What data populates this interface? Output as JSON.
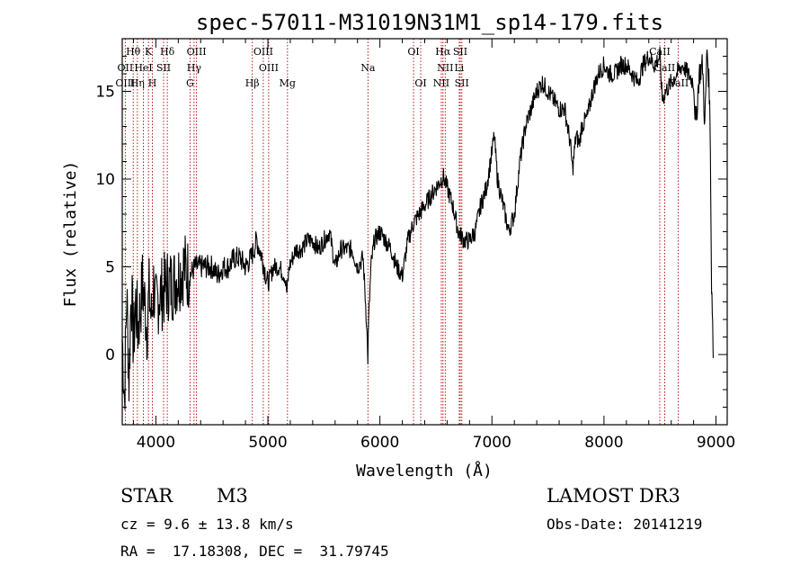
{
  "chart_data": {
    "type": "line",
    "title": "spec-57011-M31019N31M1_sp14-179.fits",
    "xlabel": "Wavelength (Å)",
    "ylabel": "Flux (relative)",
    "xlim": [
      3700,
      9100
    ],
    "ylim": [
      -4,
      18
    ],
    "xticks": [
      4000,
      5000,
      6000,
      7000,
      8000,
      9000
    ],
    "yticks": [
      0,
      5,
      10,
      15
    ],
    "series": [
      {
        "name": "flux",
        "x": [
          3700,
          3720,
          3740,
          3760,
          3780,
          3800,
          3820,
          3840,
          3860,
          3880,
          3900,
          3920,
          3940,
          3960,
          3980,
          4000,
          4030,
          4060,
          4100,
          4150,
          4200,
          4250,
          4300,
          4350,
          4400,
          4450,
          4500,
          4550,
          4600,
          4650,
          4700,
          4750,
          4800,
          4850,
          4900,
          4950,
          5000,
          5050,
          5100,
          5150,
          5170,
          5190,
          5250,
          5300,
          5350,
          5400,
          5450,
          5500,
          5550,
          5600,
          5650,
          5700,
          5750,
          5800,
          5850,
          5880,
          5892,
          5900,
          5920,
          5950,
          6000,
          6050,
          6100,
          6150,
          6200,
          6250,
          6300,
          6350,
          6400,
          6450,
          6500,
          6550,
          6563,
          6600,
          6650,
          6700,
          6750,
          6800,
          6850,
          6900,
          6950,
          7000,
          7020,
          7050,
          7100,
          7150,
          7200,
          7250,
          7300,
          7350,
          7400,
          7450,
          7500,
          7550,
          7600,
          7650,
          7700,
          7720,
          7750,
          7780,
          7800,
          7850,
          7900,
          7950,
          8000,
          8050,
          8100,
          8150,
          8200,
          8250,
          8300,
          8350,
          8400,
          8450,
          8500,
          8520,
          8550,
          8600,
          8650,
          8700,
          8750,
          8800,
          8820,
          8850,
          8880,
          8900,
          8920,
          8940,
          8950,
          8960,
          8970,
          8975
        ],
        "values": [
          1.0,
          -2.5,
          3.5,
          -1.5,
          4.0,
          0.5,
          3.0,
          1.5,
          2.5,
          4.0,
          3.0,
          1.5,
          3.5,
          2.0,
          4.0,
          2.5,
          3.5,
          3.5,
          4.0,
          4.0,
          4.5,
          5.0,
          4.5,
          5.0,
          5.0,
          5.0,
          5.0,
          4.5,
          5.0,
          5.0,
          5.5,
          5.5,
          5.0,
          5.5,
          6.5,
          5.5,
          4.0,
          5.0,
          5.0,
          4.5,
          3.5,
          5.0,
          6.0,
          6.0,
          6.5,
          6.5,
          6.0,
          6.5,
          7.0,
          5.0,
          6.0,
          6.0,
          6.0,
          5.0,
          5.5,
          2.0,
          -0.2,
          2.0,
          5.0,
          6.5,
          7.0,
          6.5,
          6.0,
          5.0,
          4.5,
          6.5,
          7.5,
          8.0,
          8.5,
          9.0,
          9.5,
          10.0,
          10.2,
          9.5,
          8.5,
          7.0,
          6.5,
          6.5,
          7.0,
          8.5,
          9.5,
          11.5,
          12.5,
          10.0,
          8.5,
          7.0,
          8.0,
          11.0,
          13.0,
          14.0,
          15.0,
          15.5,
          15.0,
          14.5,
          14.0,
          14.0,
          12.0,
          10.5,
          12.5,
          12.0,
          13.0,
          13.5,
          15.0,
          16.0,
          16.5,
          16.0,
          16.0,
          16.5,
          16.5,
          16.0,
          15.5,
          16.5,
          17.0,
          16.5,
          17.0,
          14.5,
          15.0,
          15.5,
          16.0,
          16.5,
          16.0,
          15.5,
          13.0,
          16.0,
          16.5,
          13.0,
          17.5,
          15.0,
          12.0,
          4.0,
          2.0,
          -0.2
        ]
      }
    ],
    "line_markers": [
      {
        "name": "Hθ",
        "w": 3798,
        "row": 0
      },
      {
        "name": "K",
        "w": 3934,
        "row": 0
      },
      {
        "name": "Hδ",
        "w": 4102,
        "row": 0
      },
      {
        "name": "OIII",
        "w": 4363,
        "row": 0
      },
      {
        "name": "OIII",
        "w": 4959,
        "row": 0
      },
      {
        "name": "OI",
        "w": 6300,
        "row": 0
      },
      {
        "name": "Hα",
        "w": 6563,
        "row": 0
      },
      {
        "name": "SII",
        "w": 6717,
        "row": 0
      },
      {
        "name": "CaII",
        "w": 8498,
        "row": 0
      },
      {
        "name": "OII",
        "w": 3727,
        "row": 1
      },
      {
        "name": "HeI",
        "w": 3889,
        "row": 1
      },
      {
        "name": "SII",
        "w": 4069,
        "row": 1
      },
      {
        "name": "Hγ",
        "w": 4341,
        "row": 1
      },
      {
        "name": "OIII",
        "w": 5007,
        "row": 1
      },
      {
        "name": "Na",
        "w": 5893,
        "row": 1
      },
      {
        "name": "NII",
        "w": 6583,
        "row": 1
      },
      {
        "name": "Li",
        "w": 6708,
        "row": 1
      },
      {
        "name": "CaII",
        "w": 8542,
        "row": 1
      },
      {
        "name": "OIII",
        "w": 3727,
        "row": 2
      },
      {
        "name": "Hη",
        "w": 3835,
        "row": 2
      },
      {
        "name": "H",
        "w": 3969,
        "row": 2
      },
      {
        "name": "G",
        "w": 4305,
        "row": 2
      },
      {
        "name": "Hβ",
        "w": 4861,
        "row": 2
      },
      {
        "name": "Mg",
        "w": 5175,
        "row": 2
      },
      {
        "name": "OI",
        "w": 6364,
        "row": 2
      },
      {
        "name": "NII",
        "w": 6548,
        "row": 2
      },
      {
        "name": "SII",
        "w": 6731,
        "row": 2
      },
      {
        "name": "CaII",
        "w": 8662,
        "row": 2
      }
    ],
    "marker_lines": [
      3727,
      3798,
      3835,
      3889,
      3934,
      3969,
      4069,
      4102,
      4305,
      4341,
      4363,
      4861,
      4959,
      5007,
      5175,
      5893,
      6300,
      6364,
      6548,
      6563,
      6583,
      6708,
      6717,
      6731,
      8498,
      8542,
      8662
    ]
  },
  "info": {
    "class": "STAR",
    "subclass": "M3",
    "survey": "LAMOST DR3",
    "redshift": "cz = 9.6 ± 13.8 km/s",
    "obs_date": "Obs-Date: 20141219",
    "coords": "RA =  17.18308, DEC =  31.79745"
  },
  "colors": {
    "axis": "#000000",
    "spectrum": "#000000",
    "marker": "#b00000"
  }
}
